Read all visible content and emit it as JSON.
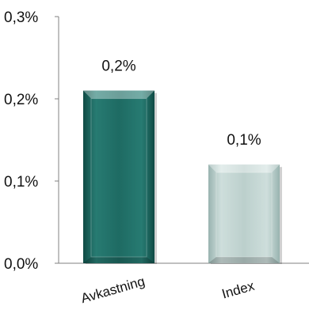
{
  "chart_data": {
    "type": "bar",
    "categories": [
      "Avkastning",
      "Index"
    ],
    "values": [
      0.21,
      0.12
    ],
    "data_labels": [
      "0,2%",
      "0,1%"
    ],
    "ylim": [
      0,
      0.3
    ],
    "yticks": [
      0,
      0.1,
      0.2,
      0.3
    ],
    "ytick_labels": [
      "0,0%",
      "0,1%",
      "0,2%",
      "0,3%"
    ],
    "title": "",
    "xlabel": "",
    "ylabel": "",
    "grid": false,
    "legend": "none",
    "bar_colors": [
      "#1e6b63",
      "#bcd0cd"
    ]
  }
}
